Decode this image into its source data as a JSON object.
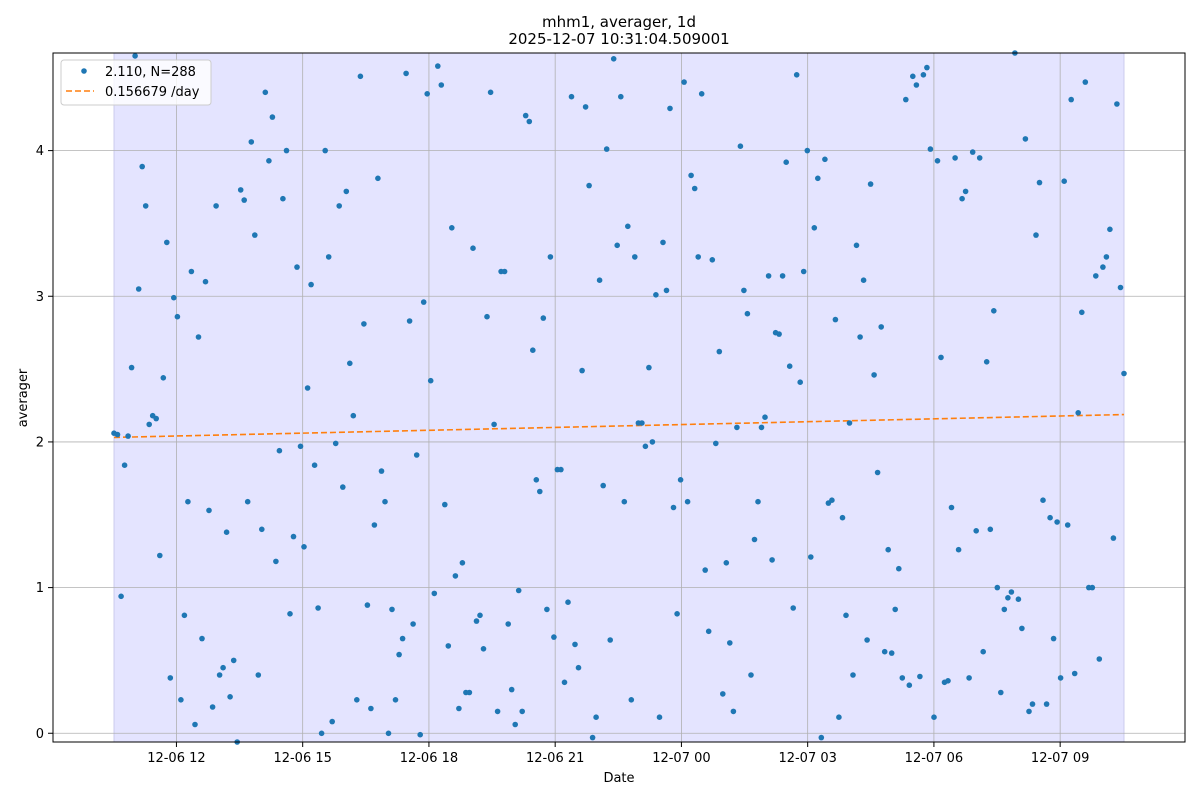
{
  "chart_data": {
    "type": "scatter",
    "title": "mhm1, averager, 1d",
    "subtitle": "2025-12-07 10:31:04.509001",
    "xlabel": "Date",
    "ylabel": "averager",
    "x_start": "2025-12-06 10:31",
    "x_end": "2025-12-07 10:31",
    "xlim": [
      "2025-12-06 09:04",
      "2025-12-07 11:58"
    ],
    "ylim": [
      -0.06,
      4.67
    ],
    "xticks": [
      "12-06 12",
      "12-06 15",
      "12-06 18",
      "12-06 21",
      "12-07 00",
      "12-07 03",
      "12-07 06",
      "12-07 09"
    ],
    "yticks": [
      "0",
      "1",
      "2",
      "3",
      "4"
    ],
    "grid": true,
    "shaded_region": {
      "from": "2025-12-06 10:31",
      "to": "2025-12-07 10:31",
      "color": "#e4e4ff"
    },
    "legend": {
      "placement": "top-left",
      "entries": [
        "2.110, N=288",
        "0.156679 /day"
      ]
    },
    "series": [
      {
        "name": "2.110, N=288",
        "marker": "point",
        "color": "#1f77b4",
        "values": [
          2.06,
          2.05,
          0.94,
          1.84,
          2.04,
          2.51,
          4.65,
          3.05,
          3.89,
          3.62,
          2.12,
          2.18,
          2.16,
          1.22,
          2.44,
          3.37,
          0.38,
          2.99,
          2.86,
          0.23,
          0.81,
          1.59,
          3.17,
          0.06,
          2.72,
          0.65,
          3.1,
          1.53,
          0.18,
          3.62,
          0.4,
          0.45,
          1.38,
          0.25,
          0.5,
          -0.06,
          3.73,
          3.66,
          1.59,
          4.06,
          3.42,
          0.4,
          1.4,
          4.4,
          3.93,
          4.23,
          1.18,
          1.94,
          3.67,
          4.0,
          0.82,
          1.35,
          3.2,
          1.97,
          1.28,
          2.37,
          3.08,
          1.84,
          0.86,
          0.0,
          4.0,
          3.27,
          0.08,
          1.99,
          3.62,
          1.69,
          3.72,
          2.54,
          2.18,
          0.23,
          4.51,
          2.81,
          0.88,
          0.17,
          1.43,
          3.81,
          1.8,
          1.59,
          0.0,
          0.85,
          0.23,
          0.54,
          0.65,
          4.53,
          2.83,
          0.75,
          1.91,
          -0.01,
          2.96,
          4.39,
          2.42,
          0.96,
          4.58,
          4.45,
          1.57,
          0.6,
          3.47,
          1.08,
          0.17,
          1.17,
          0.28,
          0.28,
          3.33,
          0.77,
          0.81,
          0.58,
          2.86,
          4.4,
          2.12,
          0.15,
          3.17,
          3.17,
          0.75,
          0.3,
          0.06,
          0.98,
          0.15,
          4.24,
          4.2,
          2.63,
          1.74,
          1.66,
          2.85,
          0.85,
          3.27,
          0.66,
          1.81,
          1.81,
          0.35,
          0.9,
          4.37,
          0.61,
          0.45,
          2.49,
          4.3,
          3.76,
          -0.03,
          0.11,
          3.11,
          1.7,
          4.01,
          0.64,
          4.63,
          3.35,
          4.37,
          1.59,
          3.48,
          0.23,
          3.27,
          2.13,
          2.13,
          1.97,
          2.51,
          2.0,
          3.01,
          0.11,
          3.37,
          3.04,
          4.29,
          1.55,
          0.82,
          1.74,
          4.47,
          1.59,
          3.83,
          3.74,
          3.27,
          4.39,
          1.12,
          0.7,
          3.25,
          1.99,
          2.62,
          0.27,
          1.17,
          0.62,
          0.15,
          2.1,
          4.03,
          3.04,
          2.88,
          0.4,
          1.33,
          1.59,
          2.1,
          2.17,
          3.14,
          1.19,
          2.75,
          2.74,
          3.14,
          3.92,
          2.52,
          0.86,
          4.52,
          2.41,
          3.17,
          4.0,
          1.21,
          3.47,
          3.81,
          -0.03,
          3.94,
          1.58,
          1.6,
          2.84,
          0.11,
          1.48,
          0.81,
          2.13,
          0.4,
          3.35,
          2.72,
          3.11,
          0.64,
          3.77,
          2.46,
          1.79,
          2.79,
          0.56,
          1.26,
          0.55,
          0.85,
          1.13,
          0.38,
          4.35,
          0.33,
          4.51,
          4.45,
          0.39,
          4.52,
          4.57,
          4.01,
          0.11,
          3.93,
          2.58,
          0.35,
          0.36,
          1.55,
          3.95,
          1.26,
          3.67,
          3.72,
          0.38,
          3.99,
          1.39,
          3.95,
          0.56,
          2.55,
          1.4,
          2.9,
          1.0,
          0.28,
          0.85,
          0.93,
          0.97,
          4.67,
          0.92,
          0.72,
          4.08,
          0.15,
          0.2,
          3.42,
          3.78,
          1.6,
          0.2,
          1.48,
          0.65,
          1.45,
          0.38,
          3.79,
          1.43,
          4.35,
          0.41,
          2.2,
          2.89,
          4.47,
          1.0,
          1.0,
          3.14,
          0.51,
          3.2,
          3.27,
          3.46,
          1.34,
          4.32,
          3.06,
          2.47
        ]
      },
      {
        "name": "0.156679 /day",
        "line_style": "dashed",
        "color": "#ff7f0e",
        "x": [
          "2025-12-06 10:31",
          "2025-12-07 10:31"
        ],
        "values": [
          2.031,
          2.188
        ]
      }
    ]
  }
}
